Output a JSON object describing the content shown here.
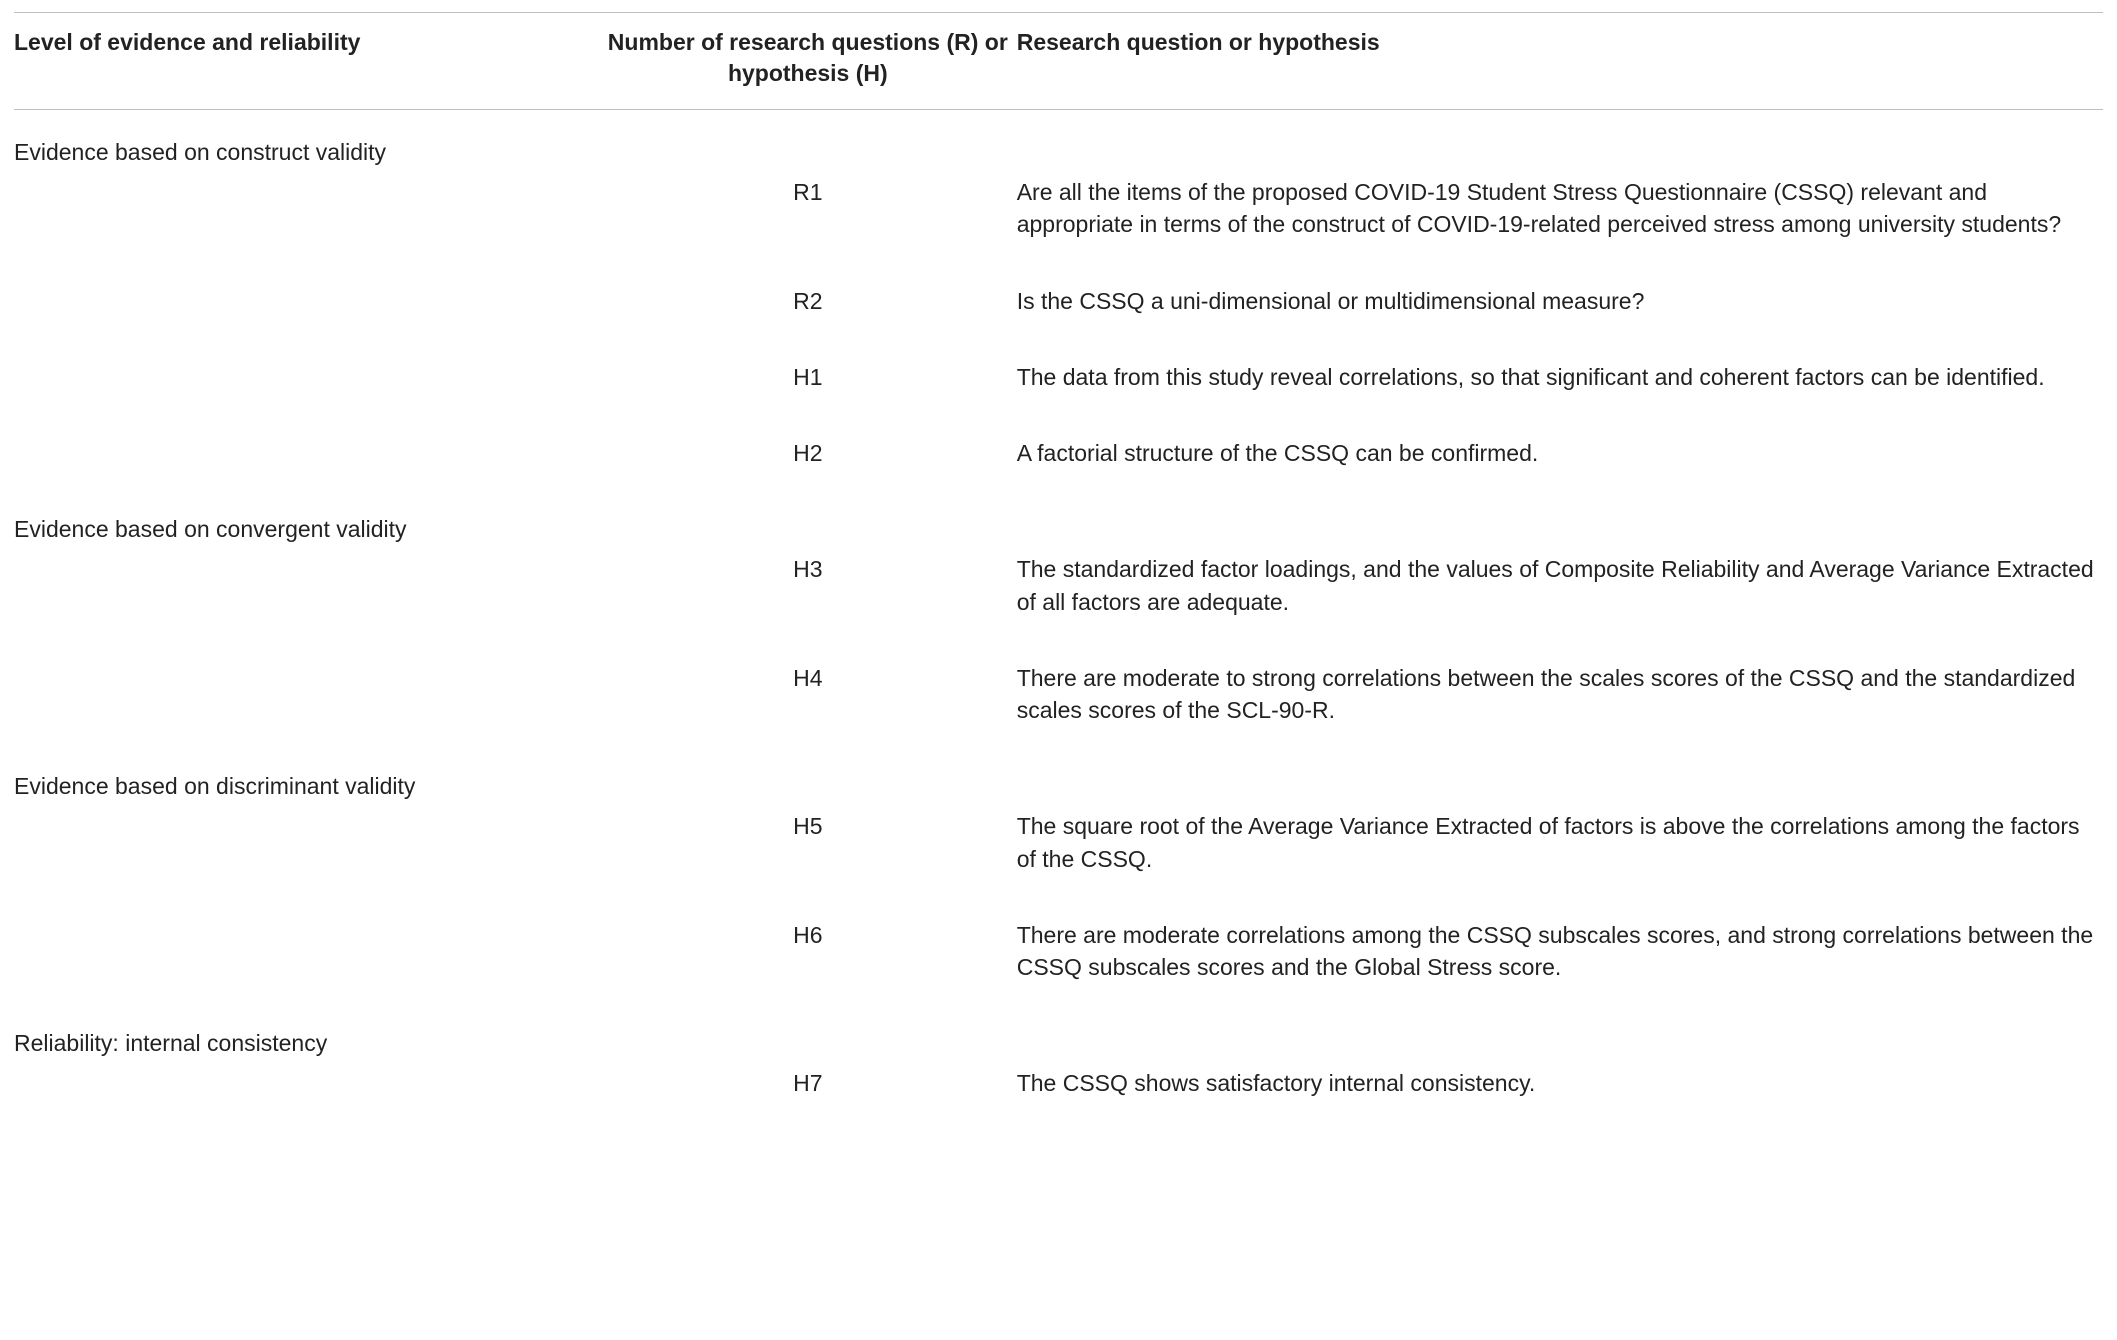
{
  "table": {
    "columns": [
      "Level of evidence and reliability",
      "Number of research questions (R) or hypothesis (H)",
      "Research question or hypothesis"
    ],
    "groups": [
      {
        "level": "Evidence based on construct validity",
        "items": [
          {
            "code": "R1",
            "text": "Are all the items of the proposed COVID-19 Student Stress Questionnaire (CSSQ) relevant and appropriate in terms of the construct of COVID-19-related perceived stress among university students?"
          },
          {
            "code": "R2",
            "text": "Is the CSSQ a uni-dimensional or multidimensional measure?"
          },
          {
            "code": "H1",
            "text": "The data from this study reveal correlations, so that significant and coherent factors can be identified."
          },
          {
            "code": "H2",
            "text": "A factorial structure of the CSSQ can be confirmed."
          }
        ]
      },
      {
        "level": "Evidence based on convergent validity",
        "items": [
          {
            "code": "H3",
            "text": "The standardized factor loadings, and the values of Composite Reliability and Average Variance Extracted of all factors are adequate."
          },
          {
            "code": "H4",
            "text": "There are moderate to strong correlations between the scales scores of the CSSQ and the standardized scales scores of the SCL-90-R."
          }
        ]
      },
      {
        "level": "Evidence based on discriminant validity",
        "items": [
          {
            "code": "H5",
            "text": "The square root of the Average Variance Extracted of factors is above the correlations among the factors of the CSSQ."
          },
          {
            "code": "H6",
            "text": "There are moderate correlations among the CSSQ subscales scores, and strong correlations between the CSSQ subscales scores and the Global Stress score."
          }
        ]
      },
      {
        "level": "Reliability: internal consistency",
        "items": [
          {
            "code": "H7",
            "text": "The CSSQ shows satisfactory internal consistency."
          }
        ]
      }
    ]
  }
}
